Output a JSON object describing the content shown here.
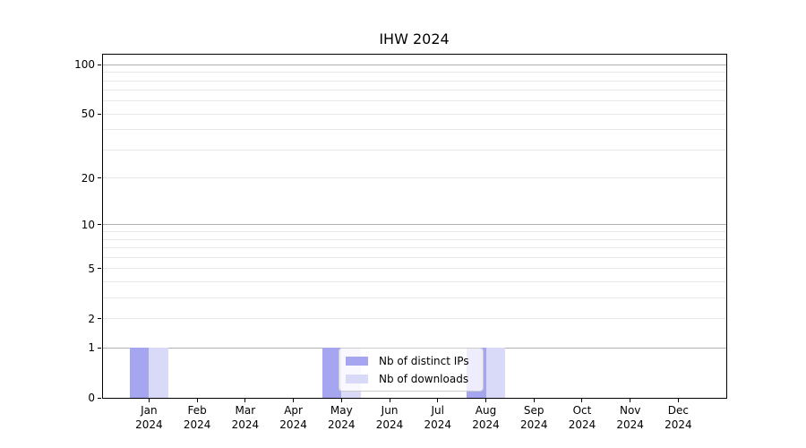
{
  "chart_data": {
    "type": "bar",
    "title": "IHW 2024",
    "xlabel": "",
    "ylabel": "",
    "yscale": "log1p",
    "ylim": [
      0,
      117
    ],
    "grid": "horizontal",
    "y_tick_values": [
      0,
      1,
      2,
      5,
      10,
      20,
      50,
      100
    ],
    "y_gridlines_major": [
      1,
      10,
      100
    ],
    "y_gridlines_minor": [
      2,
      3,
      4,
      5,
      6,
      7,
      8,
      9,
      20,
      30,
      40,
      50,
      60,
      70,
      80,
      90
    ],
    "categories": [
      {
        "month": "Jan",
        "year": "2024"
      },
      {
        "month": "Feb",
        "year": "2024"
      },
      {
        "month": "Mar",
        "year": "2024"
      },
      {
        "month": "Apr",
        "year": "2024"
      },
      {
        "month": "May",
        "year": "2024"
      },
      {
        "month": "Jun",
        "year": "2024"
      },
      {
        "month": "Jul",
        "year": "2024"
      },
      {
        "month": "Aug",
        "year": "2024"
      },
      {
        "month": "Sep",
        "year": "2024"
      },
      {
        "month": "Oct",
        "year": "2024"
      },
      {
        "month": "Nov",
        "year": "2024"
      },
      {
        "month": "Dec",
        "year": "2024"
      }
    ],
    "series": [
      {
        "name": "Nb of distinct IPs",
        "color": "#a6a6f0",
        "values": [
          1,
          0,
          0,
          0,
          1,
          0,
          0,
          1,
          0,
          0,
          0,
          0
        ]
      },
      {
        "name": "Nb of downloads",
        "color": "#d9d9f8",
        "values": [
          1,
          0,
          0,
          0,
          1,
          0,
          0,
          1,
          0,
          0,
          0,
          0
        ]
      }
    ],
    "legend": {
      "location": "inside-lower-center",
      "entries": [
        "Nb of distinct IPs",
        "Nb of downloads"
      ]
    }
  },
  "colors": {
    "background": "#ffffff",
    "axis": "#000000",
    "text": "#000000",
    "grid_major": "#b0b0b0",
    "grid_minor": "#e8e8e8",
    "legend_border": "#cccccc"
  }
}
